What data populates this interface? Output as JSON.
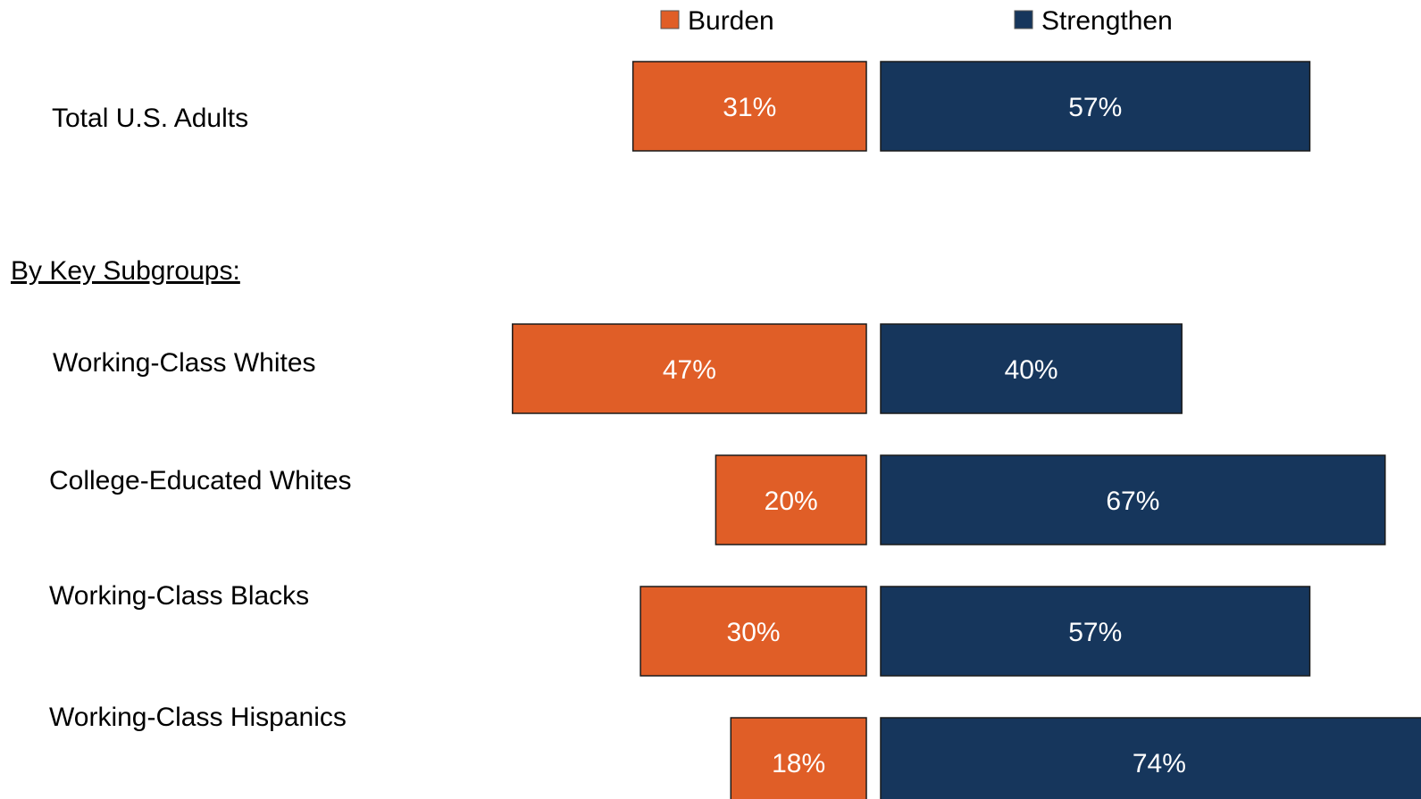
{
  "chart_data": {
    "type": "bar",
    "orientation": "horizontal-diverging",
    "legend_position": "top",
    "grid": false,
    "colors": {
      "burden": "#E05E27",
      "strengthen": "#16365C"
    },
    "series": [
      {
        "key": "burden",
        "name": "Burden"
      },
      {
        "key": "strengthen",
        "name": "Strengthen"
      }
    ],
    "total": {
      "label": "Total U.S. Adults",
      "burden": 31,
      "strengthen": 57
    },
    "subgroups_heading": "By Key Subgroups:",
    "subgroups": [
      {
        "label": "Working-Class Whites",
        "burden": 47,
        "strengthen": 40
      },
      {
        "label": "College-Educated Whites",
        "burden": 20,
        "strengthen": 67
      },
      {
        "label": "Working-Class Blacks",
        "burden": 30,
        "strengthen": 57
      },
      {
        "label": "Working-Class Hispanics",
        "burden": 18,
        "strengthen": 74
      }
    ],
    "value_suffix": "%"
  }
}
